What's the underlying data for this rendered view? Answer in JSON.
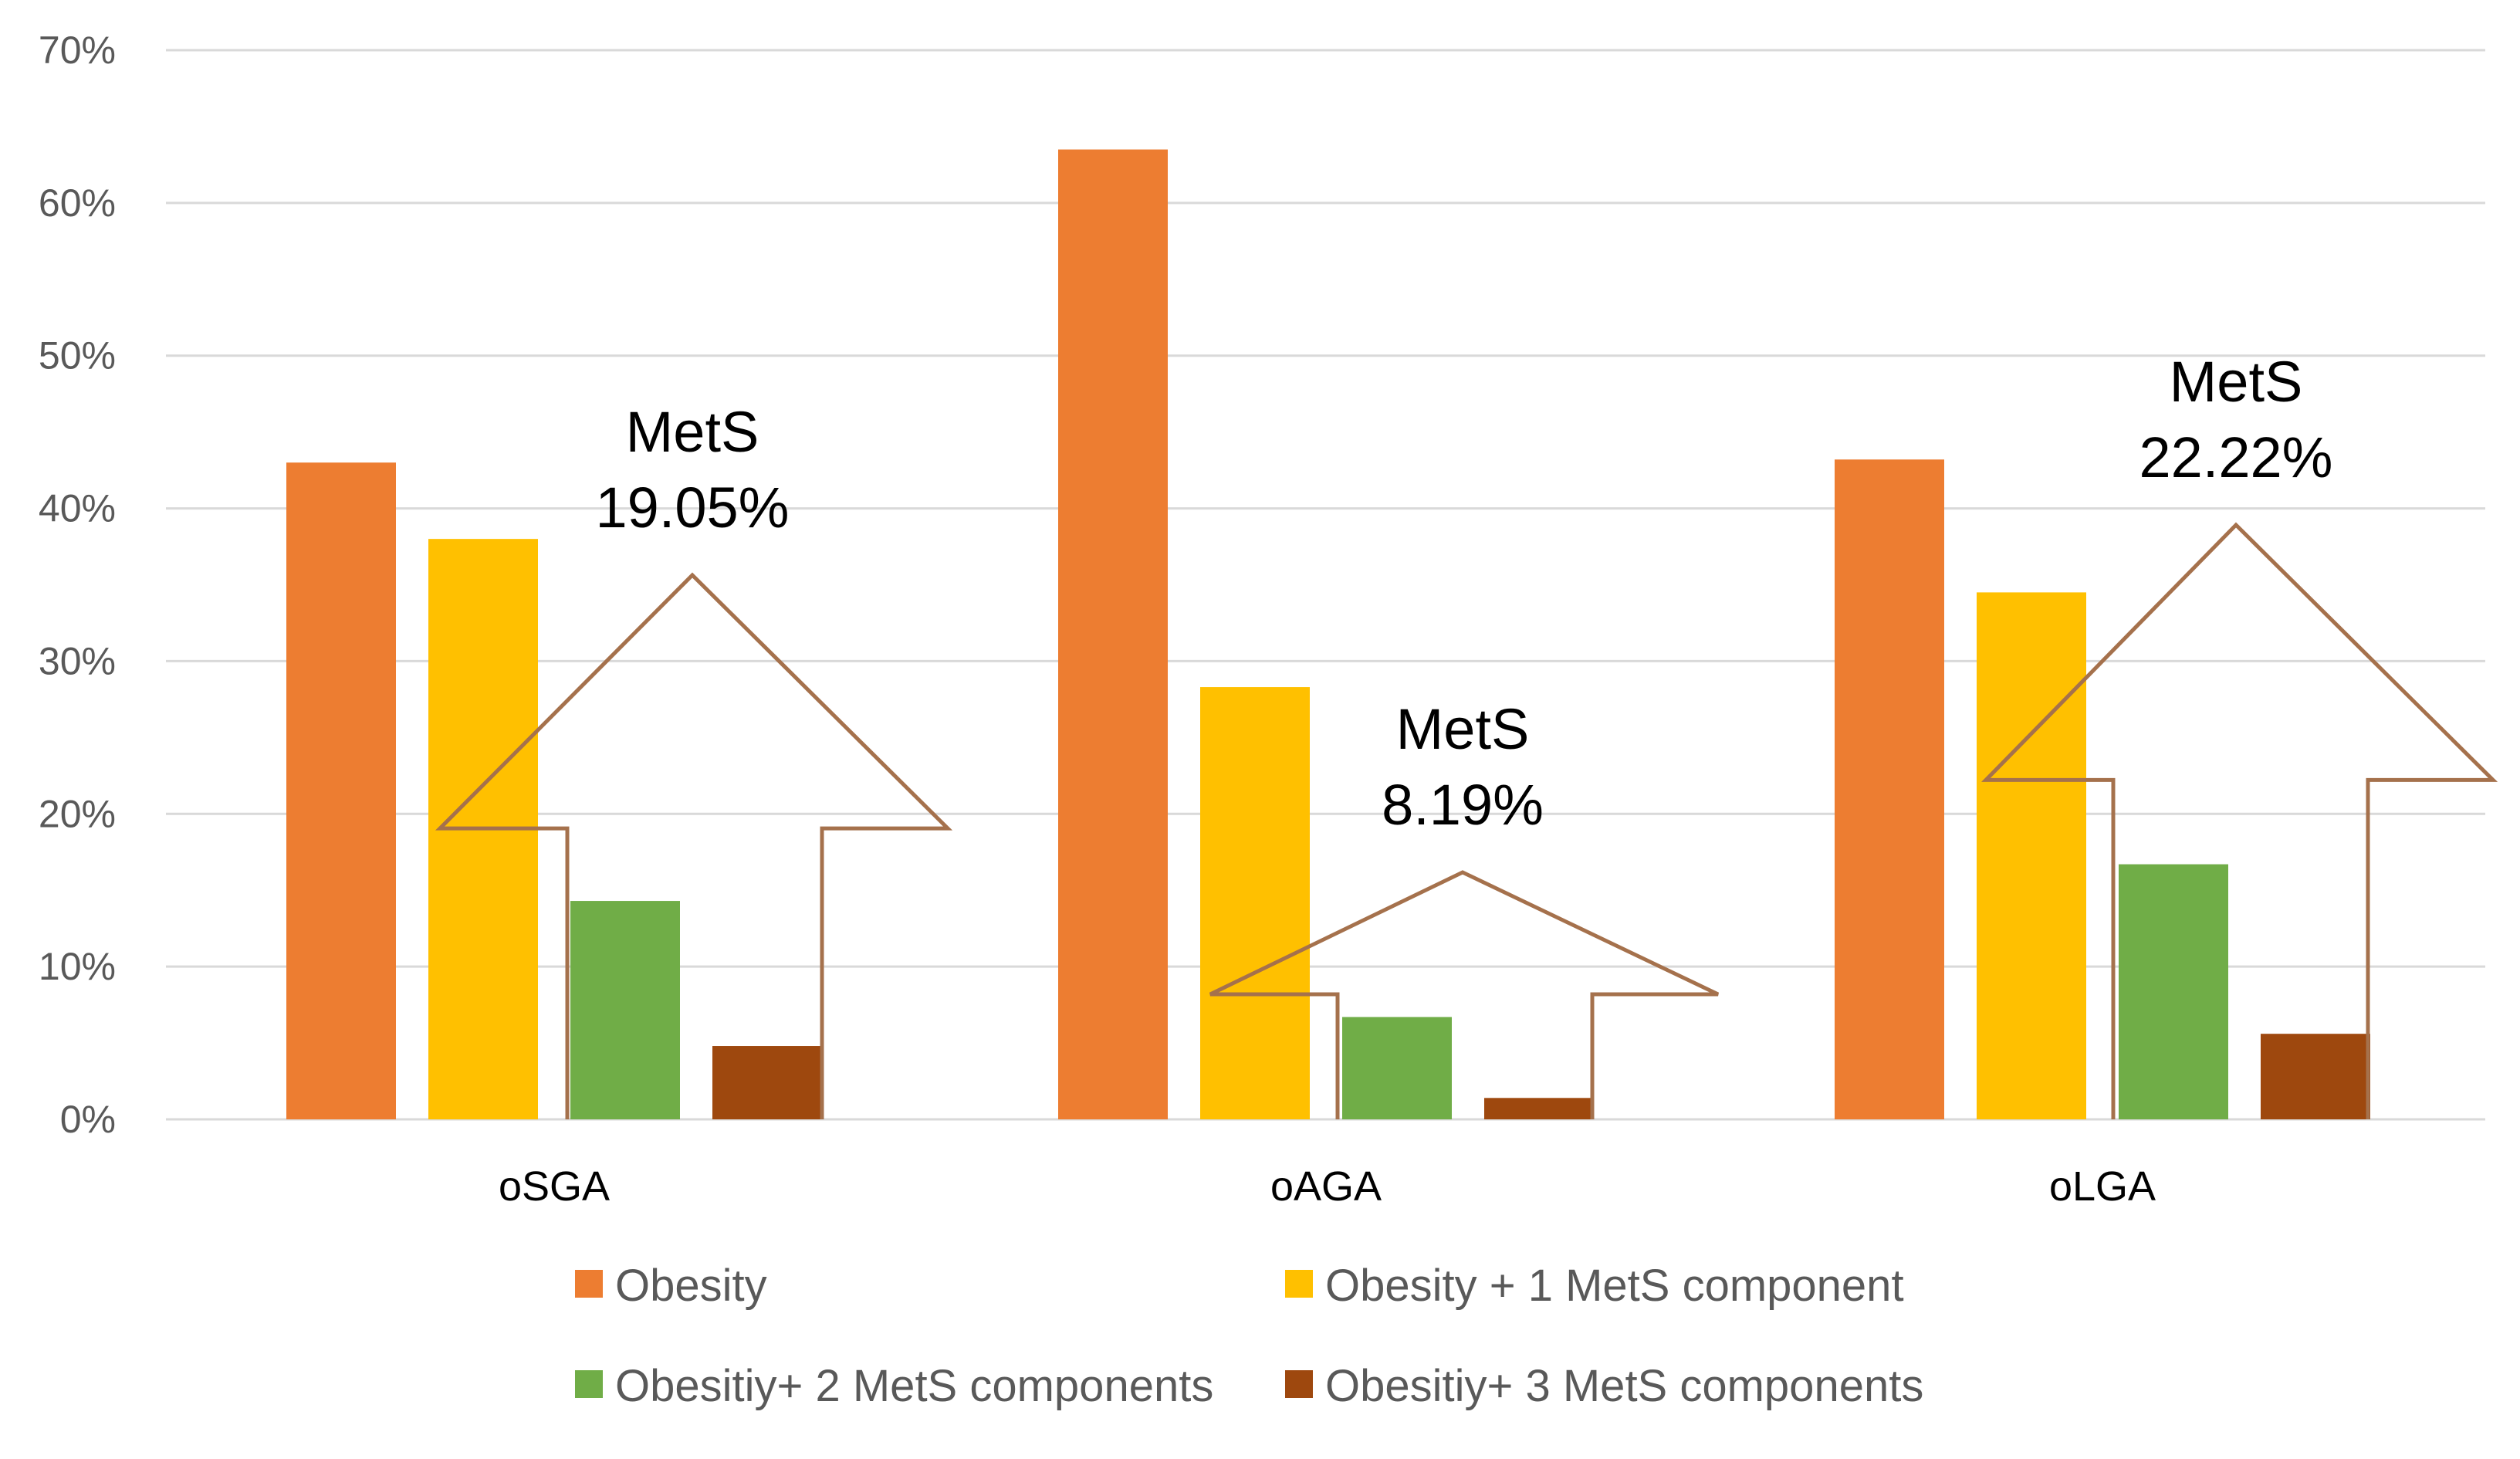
{
  "chart_data": {
    "type": "bar",
    "title": "",
    "xlabel": "",
    "ylabel": "",
    "ylim": [
      0,
      70
    ],
    "y_tick_labels": [
      "0%",
      "10%",
      "20%",
      "30%",
      "40%",
      "50%",
      "60%",
      "70%"
    ],
    "grid": true,
    "legend_position": "bottom",
    "categories": [
      "oSGA",
      "oAGA",
      "oLGA"
    ],
    "series": [
      {
        "name": "Obesity",
        "values": [
          43.0,
          63.5,
          43.2
        ],
        "color": "#ED7D31"
      },
      {
        "name": "Obesity + 1 MetS component",
        "values": [
          38.0,
          28.3,
          34.5
        ],
        "color": "#FFC000"
      },
      {
        "name": "Obesitiy+ 2 MetS components",
        "values": [
          14.3,
          6.7,
          16.7
        ],
        "color": "#70AD47"
      },
      {
        "name": "Obesitiy+ 3 MetS components",
        "values": [
          4.8,
          1.4,
          5.6
        ],
        "color": "#9E480E"
      }
    ],
    "annotations": [
      {
        "category": "oSGA",
        "label": "MetS",
        "percent_text": "19.05%",
        "value": 19.05
      },
      {
        "category": "oAGA",
        "label": "MetS",
        "percent_text": "8.19%",
        "value": 8.19
      },
      {
        "category": "oLGA",
        "label": "MetS",
        "percent_text": "22.22%",
        "value": 22.22
      }
    ],
    "annotation_arrow_color": "#A5714C"
  }
}
